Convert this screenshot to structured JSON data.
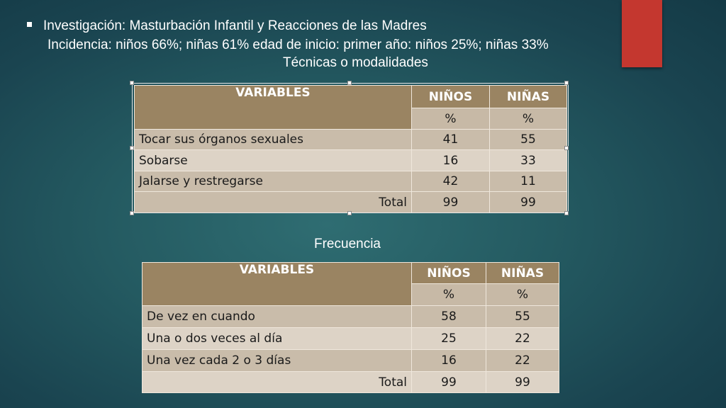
{
  "header": {
    "line1": "Investigación:  Masturbación Infantil y Reacciones de las Madres",
    "line2": "Incidencia: niños 66%; niñas 61%  edad de inicio: primer año: niños 25%; niñas 33%",
    "line3": "Técnicas o modalidades"
  },
  "frequency_label": "Frecuencia",
  "colors": {
    "accent": "#c4372f",
    "table_header": "#9a8462",
    "table_row_dark": "#c9bcaa",
    "table_row_light": "#ddd3c6"
  },
  "table1": {
    "headers": {
      "variables": "VARIABLES",
      "ninos": "NIÑOS",
      "ninas": "NIÑAS",
      "pct_ninos": "%",
      "pct_ninas": "%"
    },
    "rows": [
      {
        "label": "Tocar sus órganos sexuales",
        "ninos": "41",
        "ninas": "55"
      },
      {
        "label": "Sobarse",
        "ninos": "16",
        "ninas": "33"
      },
      {
        "label": "Jalarse y restregarse",
        "ninos": "42",
        "ninas": "11"
      }
    ],
    "total": {
      "label": "Total",
      "ninos": "99",
      "ninas": "99"
    }
  },
  "table2": {
    "headers": {
      "variables": "VARIABLES",
      "ninos": "NIÑOS",
      "ninas": "NIÑAS",
      "pct_ninos": "%",
      "pct_ninas": "%"
    },
    "rows": [
      {
        "label": "De vez en cuando",
        "ninos": "58",
        "ninas": "55"
      },
      {
        "label": "Una o dos veces al día",
        "ninos": "25",
        "ninas": "22"
      },
      {
        "label": "Una vez cada 2 o 3 días",
        "ninos": "16",
        "ninas": "22"
      }
    ],
    "total": {
      "label": "Total",
      "ninos": "99",
      "ninas": "99"
    }
  }
}
